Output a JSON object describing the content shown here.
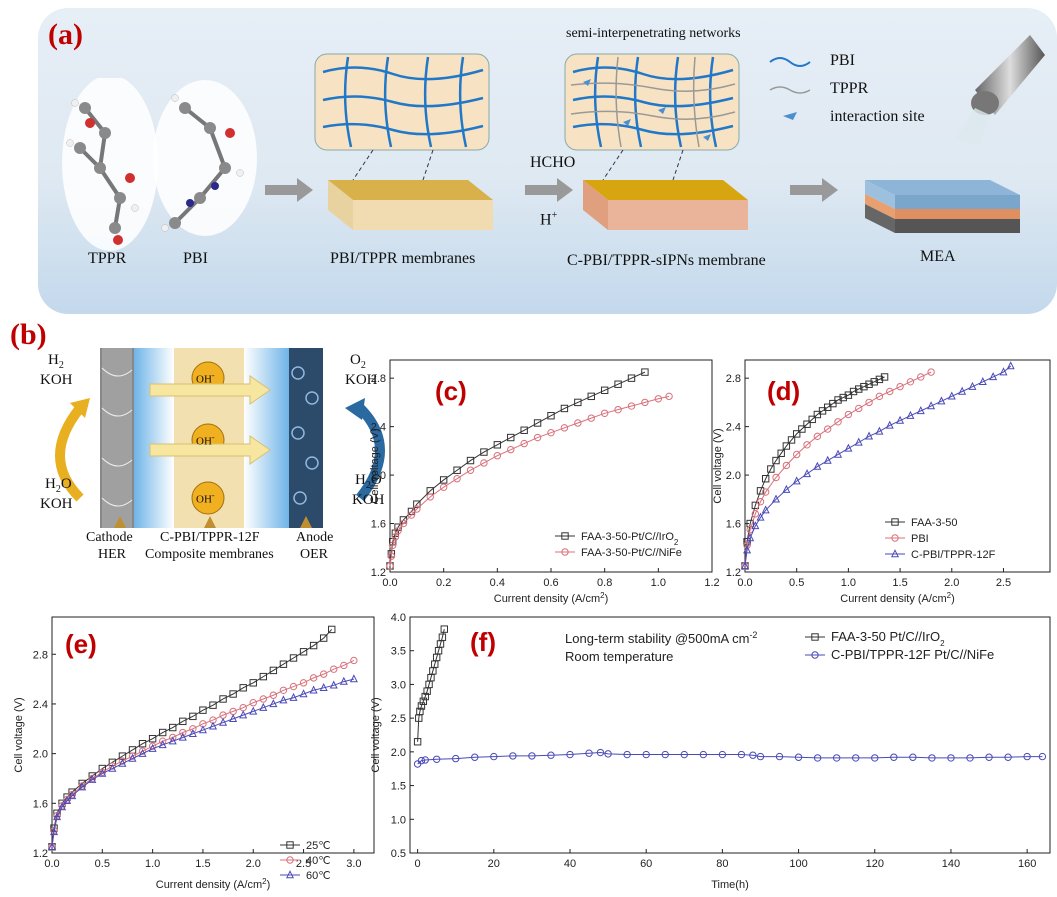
{
  "colors": {
    "panel_label": "#c00000",
    "series_black": "#333333",
    "series_red": "#d9707a",
    "series_blue": "#4a4ab8",
    "membrane_gold": "#d8b14a",
    "pbi_line": "#1e78c8"
  },
  "panel_a": {
    "label": "(a)",
    "title_networks": "semi-interpenetrating networks",
    "molecules": [
      "TPPR",
      "PBI"
    ],
    "membrane1": "PBI/TPPR membranes",
    "reagent_top": "HCHO",
    "reagent_bottom": "H",
    "reagent_sup": "+",
    "membrane2": "C-PBI/TPPR-sIPNs  membrane",
    "mea": "MEA",
    "legend": [
      "PBI",
      "TPPR",
      "interaction site"
    ]
  },
  "panel_b": {
    "label": "(b)",
    "h2": "H",
    "h2_sub": "2",
    "koh1": "KOH",
    "o2": "O",
    "o2_sub": "2",
    "koh2": "KOH",
    "h2o_left": "H",
    "h2o_left_sub": "2",
    "h2o_left_tail": "O",
    "koh3": "KOH",
    "h2o_right": "H",
    "h2o_right_sub": "2",
    "h2o_right_tail": "O",
    "koh4": "KOH",
    "oh": "OH",
    "oh_sup": "-",
    "cathode": "Cathode",
    "her": "HER",
    "membrane_line1": "C-PBI/TPPR-12F",
    "membrane_line2": "Composite membranes",
    "anode": "Anode",
    "oer": "OER"
  },
  "chart_data": [
    {
      "id": "c",
      "label": "(c)",
      "type": "line",
      "xlabel": "Current density (A/cm",
      "xlabel_sup": "2",
      "xlabel_tail": ")",
      "ylabel": "Cell voltage (V)",
      "xlim": [
        0,
        1.2
      ],
      "ylim": [
        1.2,
        2.95
      ],
      "xticks": [
        "0.0",
        "0.2",
        "0.4",
        "0.6",
        "0.8",
        "1.0",
        "1.2"
      ],
      "yticks": [
        "1.2",
        "1.6",
        "2.0",
        "2.4",
        "2.8"
      ],
      "legend_pos": "bottom-right",
      "series": [
        {
          "name": "FAA-3-50-Pt/C//IrO",
          "name_sub": "2",
          "marker": "square",
          "color": "#333333",
          "x": [
            0,
            0.005,
            0.01,
            0.02,
            0.03,
            0.05,
            0.08,
            0.1,
            0.15,
            0.2,
            0.25,
            0.3,
            0.35,
            0.4,
            0.45,
            0.5,
            0.55,
            0.6,
            0.65,
            0.7,
            0.75,
            0.8,
            0.85,
            0.9,
            0.95
          ],
          "y": [
            1.25,
            1.35,
            1.45,
            1.52,
            1.57,
            1.63,
            1.7,
            1.76,
            1.87,
            1.96,
            2.04,
            2.12,
            2.19,
            2.25,
            2.31,
            2.37,
            2.43,
            2.49,
            2.55,
            2.6,
            2.65,
            2.7,
            2.75,
            2.8,
            2.85
          ]
        },
        {
          "name": "FAA-3-50-Pt/C//NiFe",
          "marker": "circle",
          "color": "#d9707a",
          "x": [
            0,
            0.005,
            0.01,
            0.02,
            0.03,
            0.05,
            0.08,
            0.1,
            0.15,
            0.2,
            0.25,
            0.3,
            0.35,
            0.4,
            0.45,
            0.5,
            0.55,
            0.6,
            0.65,
            0.7,
            0.75,
            0.8,
            0.85,
            0.9,
            0.95,
            1.0,
            1.04
          ],
          "y": [
            1.25,
            1.33,
            1.42,
            1.49,
            1.54,
            1.6,
            1.67,
            1.72,
            1.82,
            1.9,
            1.97,
            2.04,
            2.1,
            2.16,
            2.21,
            2.26,
            2.31,
            2.35,
            2.39,
            2.43,
            2.47,
            2.51,
            2.54,
            2.57,
            2.6,
            2.63,
            2.65
          ]
        }
      ]
    },
    {
      "id": "d",
      "label": "(d)",
      "type": "line",
      "xlabel": "Current density (A/cm",
      "xlabel_sup": "2",
      "xlabel_tail": ")",
      "ylabel": "Cell voltage (V)",
      "xlim": [
        0,
        2.95
      ],
      "ylim": [
        1.2,
        2.95
      ],
      "xticks": [
        "0.0",
        "0.5",
        "1.0",
        "1.5",
        "2.0",
        "2.5"
      ],
      "yticks": [
        "1.2",
        "1.6",
        "2.0",
        "2.4",
        "2.8"
      ],
      "legend_pos": "bottom-right",
      "series": [
        {
          "name": "FAA-3-50",
          "marker": "square",
          "color": "#333333",
          "x": [
            0,
            0.02,
            0.05,
            0.1,
            0.15,
            0.2,
            0.25,
            0.3,
            0.35,
            0.4,
            0.45,
            0.5,
            0.55,
            0.6,
            0.65,
            0.7,
            0.75,
            0.8,
            0.85,
            0.9,
            0.95,
            1.0,
            1.05,
            1.1,
            1.15,
            1.2,
            1.25,
            1.3,
            1.35
          ],
          "y": [
            1.25,
            1.45,
            1.6,
            1.75,
            1.87,
            1.97,
            2.05,
            2.12,
            2.18,
            2.24,
            2.29,
            2.34,
            2.38,
            2.42,
            2.46,
            2.5,
            2.53,
            2.56,
            2.59,
            2.62,
            2.64,
            2.66,
            2.69,
            2.71,
            2.73,
            2.75,
            2.77,
            2.79,
            2.81
          ]
        },
        {
          "name": "PBI",
          "marker": "circle",
          "color": "#d9707a",
          "x": [
            0,
            0.02,
            0.05,
            0.1,
            0.15,
            0.2,
            0.3,
            0.4,
            0.5,
            0.6,
            0.7,
            0.8,
            0.9,
            1.0,
            1.1,
            1.2,
            1.3,
            1.4,
            1.5,
            1.6,
            1.7,
            1.8
          ],
          "y": [
            1.25,
            1.42,
            1.55,
            1.68,
            1.78,
            1.86,
            1.98,
            2.08,
            2.17,
            2.25,
            2.32,
            2.38,
            2.44,
            2.5,
            2.55,
            2.6,
            2.65,
            2.69,
            2.73,
            2.77,
            2.81,
            2.85
          ]
        },
        {
          "name": "C-PBI/TPPR-12F",
          "marker": "triangle",
          "color": "#4a4ab8",
          "x": [
            0,
            0.02,
            0.05,
            0.1,
            0.15,
            0.2,
            0.3,
            0.4,
            0.5,
            0.6,
            0.7,
            0.8,
            0.9,
            1.0,
            1.1,
            1.2,
            1.3,
            1.4,
            1.5,
            1.6,
            1.7,
            1.8,
            1.9,
            2.0,
            2.1,
            2.2,
            2.3,
            2.4,
            2.5,
            2.57
          ],
          "y": [
            1.25,
            1.38,
            1.48,
            1.58,
            1.65,
            1.71,
            1.8,
            1.88,
            1.95,
            2.01,
            2.07,
            2.12,
            2.17,
            2.22,
            2.27,
            2.32,
            2.36,
            2.41,
            2.45,
            2.49,
            2.53,
            2.57,
            2.61,
            2.65,
            2.69,
            2.73,
            2.77,
            2.81,
            2.85,
            2.9
          ]
        }
      ]
    },
    {
      "id": "e",
      "label": "(e)",
      "type": "line",
      "xlabel": "Current density (A/cm",
      "xlabel_sup": "2",
      "xlabel_tail": ")",
      "ylabel": "Cell voltage (V)",
      "xlim": [
        0,
        3.2
      ],
      "ylim": [
        1.2,
        3.1
      ],
      "xticks": [
        "0.0",
        "0.5",
        "1.0",
        "1.5",
        "2.0",
        "2.5",
        "3.0"
      ],
      "yticks": [
        "1.2",
        "1.6",
        "2.0",
        "2.4",
        "2.8"
      ],
      "legend_pos": "bottom-right",
      "series": [
        {
          "name": "25℃",
          "marker": "square",
          "color": "#333333",
          "x": [
            0,
            0.02,
            0.05,
            0.1,
            0.15,
            0.2,
            0.3,
            0.4,
            0.5,
            0.6,
            0.7,
            0.8,
            0.9,
            1.0,
            1.1,
            1.2,
            1.3,
            1.4,
            1.5,
            1.6,
            1.7,
            1.8,
            1.9,
            2.0,
            2.1,
            2.2,
            2.3,
            2.4,
            2.5,
            2.6,
            2.7,
            2.78
          ],
          "y": [
            1.25,
            1.4,
            1.52,
            1.6,
            1.65,
            1.69,
            1.76,
            1.82,
            1.88,
            1.93,
            1.98,
            2.03,
            2.08,
            2.12,
            2.17,
            2.21,
            2.26,
            2.3,
            2.35,
            2.39,
            2.44,
            2.48,
            2.53,
            2.57,
            2.62,
            2.67,
            2.72,
            2.77,
            2.82,
            2.87,
            2.93,
            3.0
          ]
        },
        {
          "name": "40℃",
          "marker": "circle",
          "color": "#d9707a",
          "x": [
            0,
            0.02,
            0.05,
            0.1,
            0.15,
            0.2,
            0.3,
            0.4,
            0.5,
            0.6,
            0.7,
            0.8,
            0.9,
            1.0,
            1.1,
            1.2,
            1.3,
            1.4,
            1.5,
            1.6,
            1.7,
            1.8,
            1.9,
            2.0,
            2.1,
            2.2,
            2.3,
            2.4,
            2.5,
            2.6,
            2.7,
            2.8,
            2.9,
            3.0
          ],
          "y": [
            1.25,
            1.38,
            1.5,
            1.58,
            1.63,
            1.67,
            1.74,
            1.8,
            1.85,
            1.9,
            1.94,
            1.98,
            2.02,
            2.06,
            2.1,
            2.13,
            2.17,
            2.2,
            2.24,
            2.27,
            2.31,
            2.34,
            2.37,
            2.41,
            2.44,
            2.47,
            2.51,
            2.54,
            2.57,
            2.61,
            2.64,
            2.68,
            2.71,
            2.75
          ]
        },
        {
          "name": "60℃",
          "marker": "triangle",
          "color": "#4a4ab8",
          "x": [
            0,
            0.02,
            0.05,
            0.1,
            0.15,
            0.2,
            0.3,
            0.4,
            0.5,
            0.6,
            0.7,
            0.8,
            0.9,
            1.0,
            1.1,
            1.2,
            1.3,
            1.4,
            1.5,
            1.6,
            1.7,
            1.8,
            1.9,
            2.0,
            2.1,
            2.2,
            2.3,
            2.4,
            2.5,
            2.6,
            2.7,
            2.8,
            2.9,
            3.0
          ],
          "y": [
            1.25,
            1.37,
            1.49,
            1.57,
            1.62,
            1.66,
            1.73,
            1.79,
            1.84,
            1.88,
            1.92,
            1.96,
            2.0,
            2.04,
            2.07,
            2.1,
            2.13,
            2.16,
            2.19,
            2.22,
            2.25,
            2.28,
            2.31,
            2.34,
            2.37,
            2.4,
            2.43,
            2.45,
            2.48,
            2.51,
            2.53,
            2.55,
            2.58,
            2.6
          ]
        }
      ]
    },
    {
      "id": "f",
      "label": "(f)",
      "type": "line",
      "xlabel": "Time(h)",
      "ylabel": "Cell voltage (V)",
      "xlim": [
        -2,
        166
      ],
      "ylim": [
        0.5,
        4.0
      ],
      "xticks": [
        "0",
        "20",
        "40",
        "60",
        "80",
        "100",
        "120",
        "140",
        "160"
      ],
      "yticks": [
        "0.5",
        "1.0",
        "1.5",
        "2.0",
        "2.5",
        "3.0",
        "3.5",
        "4.0"
      ],
      "annotation_line1": "Long-term stability @500mA cm",
      "annotation_sup": "-2",
      "annotation_line2": "Room temperature",
      "legend_pos": "top-right",
      "series": [
        {
          "name": "FAA-3-50 Pt/C//IrO",
          "name_sub": "2",
          "marker": "square",
          "color": "#333333",
          "x": [
            0,
            0.3,
            0.6,
            1,
            1.5,
            2,
            2.5,
            3,
            3.5,
            4,
            4.5,
            5,
            5.5,
            6,
            6.5,
            7
          ],
          "y": [
            2.15,
            2.5,
            2.6,
            2.68,
            2.75,
            2.82,
            2.9,
            3.0,
            3.1,
            3.2,
            3.3,
            3.4,
            3.5,
            3.6,
            3.7,
            3.82
          ]
        },
        {
          "name": "C-PBI/TPPR-12F Pt/C//NiFe",
          "marker": "circle",
          "color": "#4a4ab8",
          "x": [
            0,
            1,
            2,
            5,
            10,
            15,
            20,
            25,
            30,
            35,
            40,
            45,
            48,
            50,
            55,
            60,
            65,
            70,
            75,
            80,
            85,
            88,
            90,
            95,
            100,
            105,
            110,
            115,
            120,
            125,
            130,
            135,
            140,
            145,
            150,
            155,
            160,
            164
          ],
          "y": [
            1.82,
            1.87,
            1.88,
            1.89,
            1.9,
            1.92,
            1.93,
            1.94,
            1.94,
            1.95,
            1.96,
            1.98,
            1.99,
            1.97,
            1.96,
            1.96,
            1.96,
            1.96,
            1.96,
            1.96,
            1.96,
            1.95,
            1.93,
            1.93,
            1.92,
            1.91,
            1.91,
            1.91,
            1.91,
            1.92,
            1.92,
            1.91,
            1.91,
            1.91,
            1.92,
            1.92,
            1.93,
            1.93
          ]
        }
      ]
    }
  ]
}
